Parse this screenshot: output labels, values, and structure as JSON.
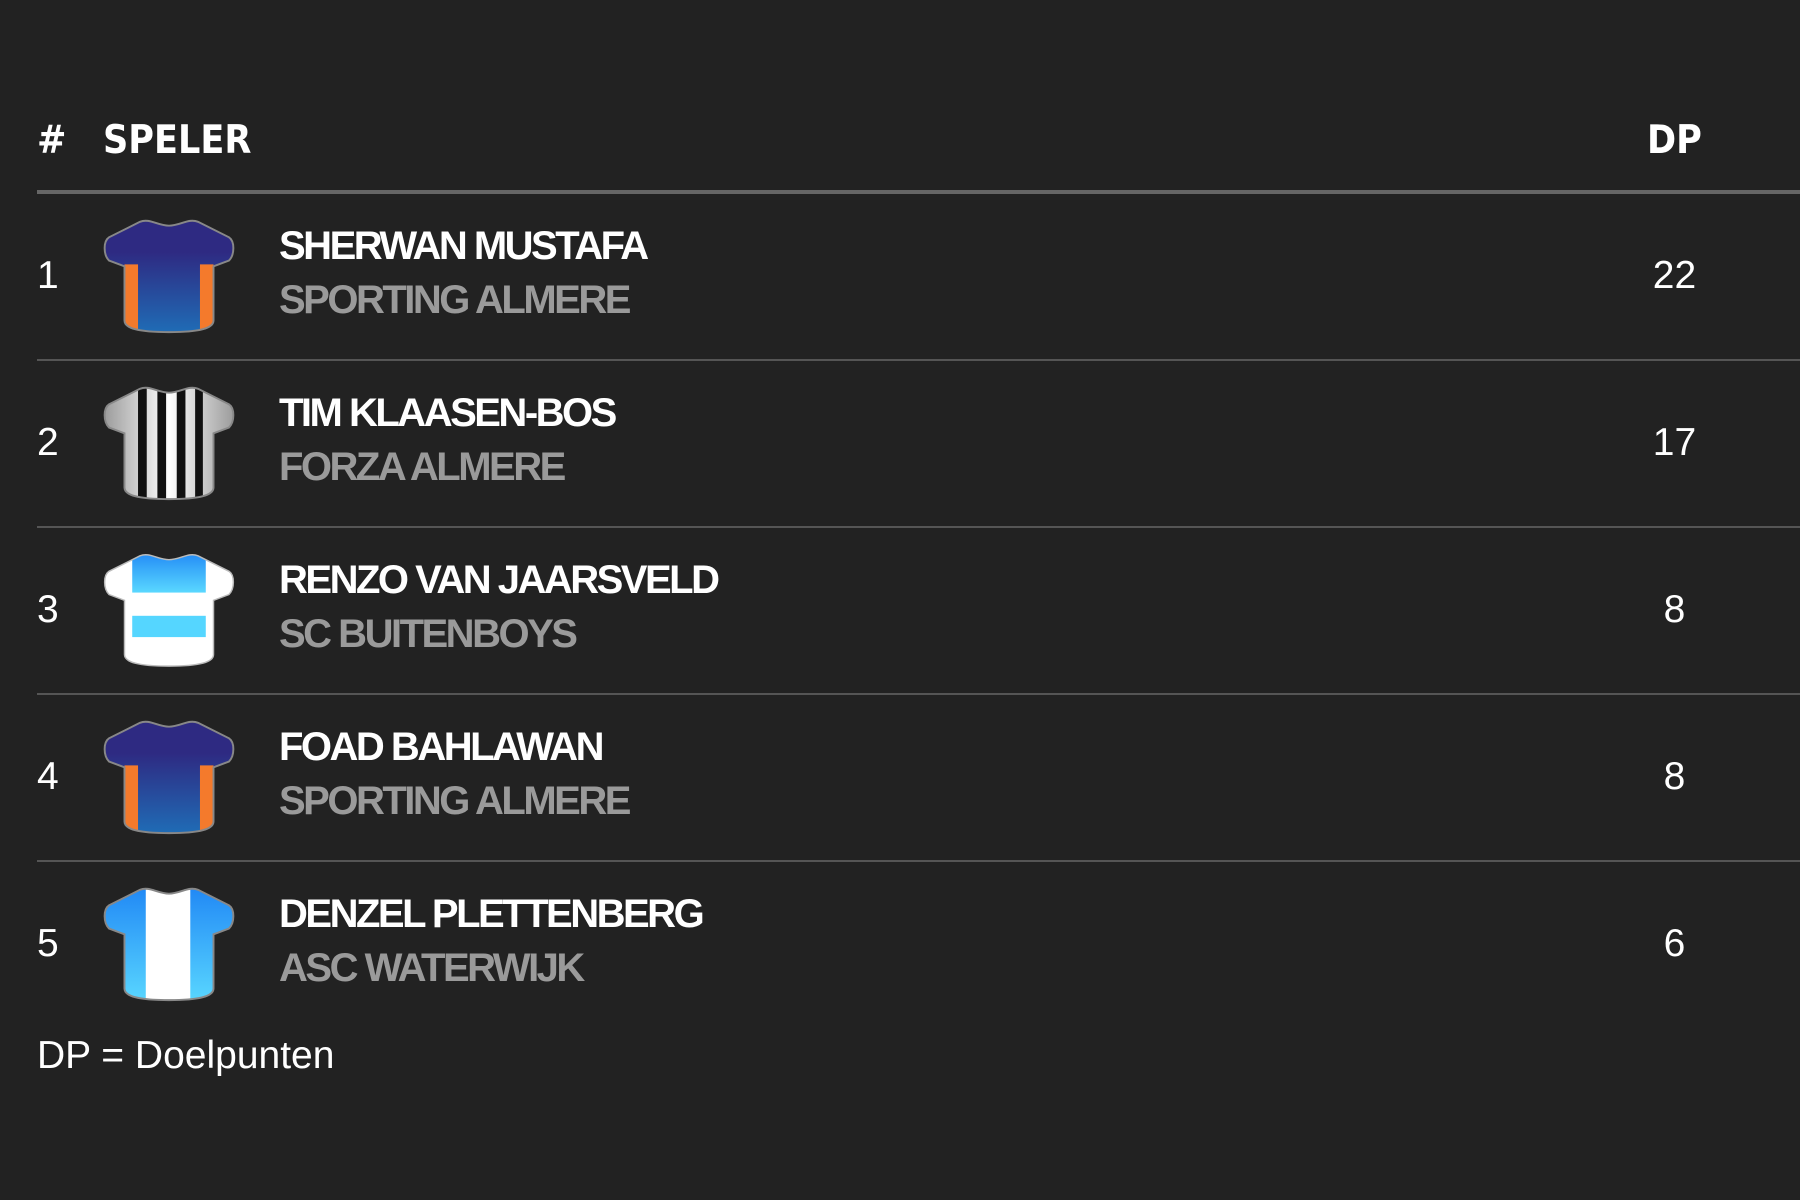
{
  "header": {
    "rank": "#",
    "player": "SPELER",
    "dp": "DP"
  },
  "rows": [
    {
      "rank": "1",
      "name": "SHERWAN MUSTAFA",
      "club": "SPORTING ALMERE",
      "dp": "22",
      "kit": "sporting"
    },
    {
      "rank": "2",
      "name": "TIM KLAASEN-BOS",
      "club": "FORZA ALMERE",
      "dp": "17",
      "kit": "forza"
    },
    {
      "rank": "3",
      "name": "RENZO VAN JAARSVELD",
      "club": "SC BUITENBOYS",
      "dp": "8",
      "kit": "buitenboys"
    },
    {
      "rank": "4",
      "name": "FOAD BAHLAWAN",
      "club": "SPORTING ALMERE",
      "dp": "8",
      "kit": "sporting"
    },
    {
      "rank": "5",
      "name": "DENZEL PLETTENBERG",
      "club": "ASC WATERWIJK",
      "dp": "6",
      "kit": "waterwijk"
    }
  ],
  "footer": "DP = Doelpunten",
  "colors": {
    "background": "#222222",
    "club_text": "#9a9a9a",
    "divider": "#555555"
  }
}
